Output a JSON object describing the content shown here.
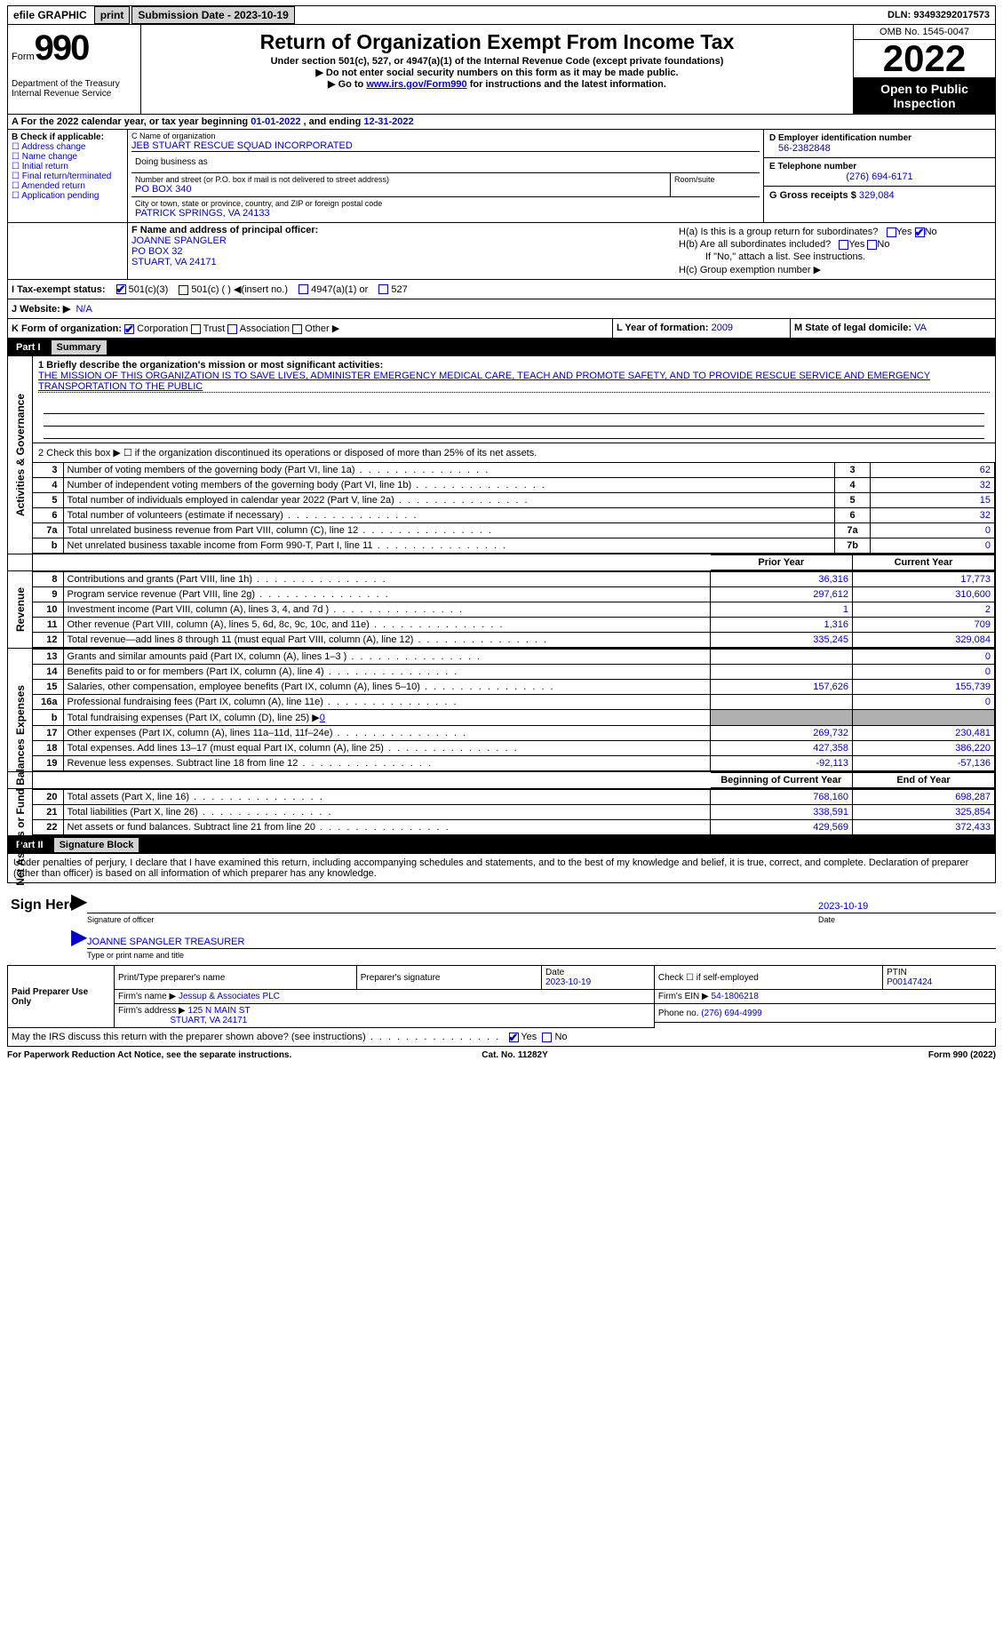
{
  "topbar": {
    "efile": "efile GRAPHIC",
    "print": "print",
    "sub_label": "Submission Date - 2023-10-19",
    "dln": "DLN: 93493292017573"
  },
  "header": {
    "form_small": "Form",
    "form_big": "990",
    "dept": "Department of the Treasury\nInternal Revenue Service",
    "title": "Return of Organization Exempt From Income Tax",
    "sub1": "Under section 501(c), 527, or 4947(a)(1) of the Internal Revenue Code (except private foundations)",
    "sub2": "▶ Do not enter social security numbers on this form as it may be made public.",
    "sub3_pre": "▶ Go to ",
    "sub3_link": "www.irs.gov/Form990",
    "sub3_post": " for instructions and the latest information.",
    "omb": "OMB No. 1545-0047",
    "year": "2022",
    "open": "Open to Public Inspection"
  },
  "A": {
    "text": "A For the 2022 calendar year, or tax year beginning ",
    "begin": "01-01-2022",
    "mid": " , and ending ",
    "end": "12-31-2022"
  },
  "B": {
    "hdr": "B Check if applicable:",
    "items": [
      "☐ Address change",
      "☐ Name change",
      "☐ Initial return",
      "☐ Final return/terminated",
      "☐ Amended return",
      "☐ Application pending"
    ]
  },
  "C": {
    "label": "C Name of organization",
    "name": "JEB STUART RESCUE SQUAD INCORPORATED",
    "dba_label": "Doing business as",
    "street_label": "Number and street (or P.O. box if mail is not delivered to street address)",
    "street": "PO BOX 340",
    "suite_label": "Room/suite",
    "city_label": "City or town, state or province, country, and ZIP or foreign postal code",
    "city": "PATRICK SPRINGS, VA  24133"
  },
  "D": {
    "label": "D Employer identification number",
    "val": "56-2382848"
  },
  "E": {
    "label": "E Telephone number",
    "val": "(276) 694-6171"
  },
  "G": {
    "label": "G Gross receipts $",
    "val": "329,084"
  },
  "F": {
    "label": "F  Name and address of principal officer:",
    "name": "JOANNE SPANGLER",
    "addr1": "PO BOX 32",
    "addr2": "STUART, VA  24171"
  },
  "H": {
    "a": "H(a)  Is this is a group return for subordinates?",
    "b": "H(b)  Are all subordinates included?",
    "bnote": "If \"No,\" attach a list. See instructions.",
    "c": "H(c)  Group exemption number ▶"
  },
  "I": {
    "label": "I    Tax-exempt status:",
    "opts": [
      "501(c)(3)",
      "501(c) (   ) ◀(insert no.)",
      "4947(a)(1) or",
      "527"
    ]
  },
  "J": {
    "label": "J   Website: ▶",
    "val": "N/A"
  },
  "K": {
    "label": "K Form of organization:",
    "opts": [
      "Corporation",
      "Trust",
      "Association",
      "Other ▶"
    ]
  },
  "L": {
    "label": "L Year of formation:",
    "val": "2009"
  },
  "M": {
    "label": "M State of legal domicile:",
    "val": "VA"
  },
  "part1": {
    "num": "Part I",
    "title": "Summary"
  },
  "sec_labels": {
    "ag": "Activities & Governance",
    "rev": "Revenue",
    "exp": "Expenses",
    "na": "Net Assets or Fund Balances"
  },
  "line1": {
    "label": "1  Briefly describe the organization's mission or most significant activities:",
    "text": "THE MISSION OF THIS ORGANIZATION IS TO SAVE LIVES, ADMINISTER EMERGENCY MEDICAL CARE, TEACH AND PROMOTE SAFETY, AND TO PROVIDE RESCUE SERVICE AND EMERGENCY TRANSPORTATION TO THE PUBLIC"
  },
  "line2": "2    Check this box ▶ ☐  if the organization discontinued its operations or disposed of more than 25% of its net assets.",
  "ag_rows": [
    {
      "n": "3",
      "d": "Number of voting members of the governing body (Part VI, line 1a)",
      "box": "3",
      "v": "62"
    },
    {
      "n": "4",
      "d": "Number of independent voting members of the governing body (Part VI, line 1b)",
      "box": "4",
      "v": "32"
    },
    {
      "n": "5",
      "d": "Total number of individuals employed in calendar year 2022 (Part V, line 2a)",
      "box": "5",
      "v": "15"
    },
    {
      "n": "6",
      "d": "Total number of volunteers (estimate if necessary)",
      "box": "6",
      "v": "32"
    },
    {
      "n": "7a",
      "d": "Total unrelated business revenue from Part VIII, column (C), line 12",
      "box": "7a",
      "v": "0"
    },
    {
      "n": "b",
      "d": "Net unrelated business taxable income from Form 990-T, Part I, line 11",
      "box": "7b",
      "v": "0"
    }
  ],
  "col_hdr": {
    "prior": "Prior Year",
    "curr": "Current Year"
  },
  "rev_rows": [
    {
      "n": "8",
      "d": "Contributions and grants (Part VIII, line 1h)",
      "p": "36,316",
      "c": "17,773"
    },
    {
      "n": "9",
      "d": "Program service revenue (Part VIII, line 2g)",
      "p": "297,612",
      "c": "310,600"
    },
    {
      "n": "10",
      "d": "Investment income (Part VIII, column (A), lines 3, 4, and 7d )",
      "p": "1",
      "c": "2"
    },
    {
      "n": "11",
      "d": "Other revenue (Part VIII, column (A), lines 5, 6d, 8c, 9c, 10c, and 11e)",
      "p": "1,316",
      "c": "709"
    },
    {
      "n": "12",
      "d": "Total revenue—add lines 8 through 11 (must equal Part VIII, column (A), line 12)",
      "p": "335,245",
      "c": "329,084"
    }
  ],
  "exp_rows": [
    {
      "n": "13",
      "d": "Grants and similar amounts paid (Part IX, column (A), lines 1–3 )",
      "p": "",
      "c": "0"
    },
    {
      "n": "14",
      "d": "Benefits paid to or for members (Part IX, column (A), line 4)",
      "p": "",
      "c": "0"
    },
    {
      "n": "15",
      "d": "Salaries, other compensation, employee benefits (Part IX, column (A), lines 5–10)",
      "p": "157,626",
      "c": "155,739"
    },
    {
      "n": "16a",
      "d": "Professional fundraising fees (Part IX, column (A), line 11e)",
      "p": "",
      "c": "0"
    }
  ],
  "line16b": {
    "n": "b",
    "d": "Total fundraising expenses (Part IX, column (D), line 25) ▶",
    "v": "0"
  },
  "exp_rows2": [
    {
      "n": "17",
      "d": "Other expenses (Part IX, column (A), lines 11a–11d, 11f–24e)",
      "p": "269,732",
      "c": "230,481"
    },
    {
      "n": "18",
      "d": "Total expenses. Add lines 13–17 (must equal Part IX, column (A), line 25)",
      "p": "427,358",
      "c": "386,220"
    },
    {
      "n": "19",
      "d": "Revenue less expenses. Subtract line 18 from line 12",
      "p": "-92,113",
      "c": "-57,136"
    }
  ],
  "na_hdr": {
    "b": "Beginning of Current Year",
    "e": "End of Year"
  },
  "na_rows": [
    {
      "n": "20",
      "d": "Total assets (Part X, line 16)",
      "p": "768,160",
      "c": "698,287"
    },
    {
      "n": "21",
      "d": "Total liabilities (Part X, line 26)",
      "p": "338,591",
      "c": "325,854"
    },
    {
      "n": "22",
      "d": "Net assets or fund balances. Subtract line 21 from line 20",
      "p": "429,569",
      "c": "372,433"
    }
  ],
  "part2": {
    "num": "Part II",
    "title": "Signature Block",
    "decl": "Under penalties of perjury, I declare that I have examined this return, including accompanying schedules and statements, and to the best of my knowledge and belief, it is true, correct, and complete. Declaration of preparer (other than officer) is based on all information of which preparer has any knowledge."
  },
  "sign": {
    "here": "Sign Here",
    "sig_off": "Signature of officer",
    "date": "2023-10-19",
    "name": "JOANNE SPANGLER TREASURER",
    "type": "Type or print name and title"
  },
  "prep": {
    "label": "Paid Preparer Use Only",
    "h1": "Print/Type preparer's name",
    "h2": "Preparer's signature",
    "h3": "Date",
    "date": "2023-10-19",
    "h4": "Check ☐ if self-employed",
    "h5": "PTIN",
    "ptin": "P00147424",
    "firm_l": "Firm's name   ▶",
    "firm": "Jessup & Associates PLC",
    "ein_l": "Firm's EIN ▶",
    "ein": "54-1806218",
    "addr_l": "Firm's address ▶",
    "addr1": "125 N MAIN ST",
    "addr2": "STUART, VA  24171",
    "ph_l": "Phone no.",
    "ph": "(276) 694-4999"
  },
  "may": {
    "text": "May the IRS discuss this return with the preparer shown above? (see instructions)"
  },
  "footer": {
    "l": "For Paperwork Reduction Act Notice, see the separate instructions.",
    "c": "Cat. No. 11282Y",
    "r": "Form 990 (2022)"
  }
}
